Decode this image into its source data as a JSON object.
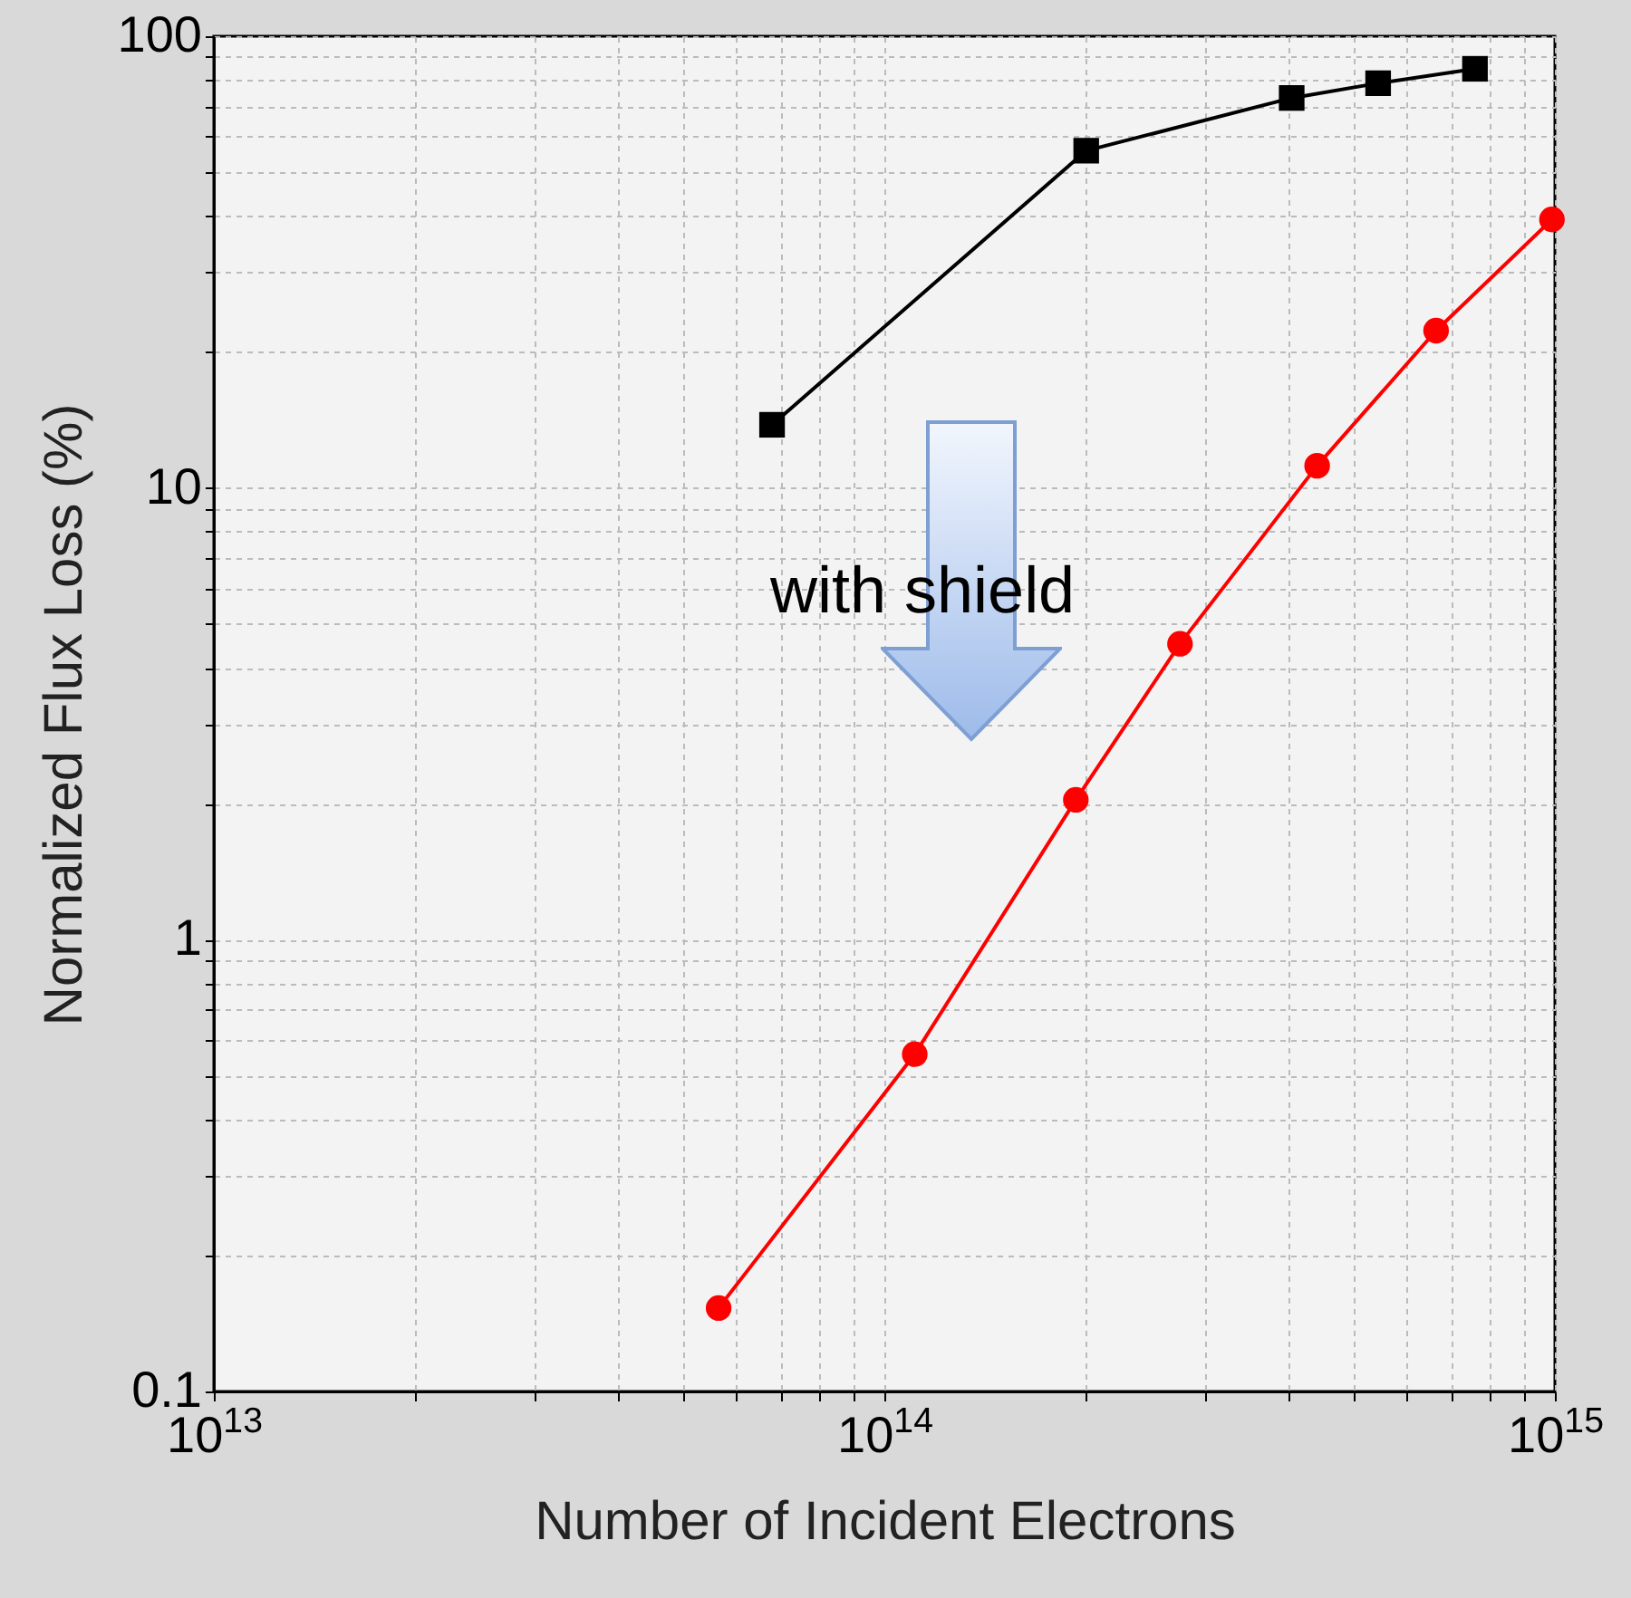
{
  "chart_data": {
    "type": "line",
    "xlabel": "Number of Incident Electrons",
    "ylabel": "Normalized Flux Loss (%)",
    "log": "xy",
    "grid": true,
    "line_style": "solid",
    "xlim": [
      10000000000000.0,
      1000000000000000.0
    ],
    "ylim": [
      0.1,
      100
    ],
    "xticks": [
      {
        "value": 10000000000000.0,
        "label": "10$^{13}$"
      },
      {
        "value": 20000000000000.0,
        "label": null
      },
      {
        "value": 30000000000000.0,
        "label": null
      },
      {
        "value": 40000000000000.0,
        "label": null
      },
      {
        "value": 50000000000000.0,
        "label": null
      },
      {
        "value": 60000000000000.0,
        "label": null
      },
      {
        "value": 70000000000000.0,
        "label": null
      },
      {
        "value": 80000000000000.0,
        "label": null
      },
      {
        "value": 90000000000000.0,
        "label": null
      },
      {
        "value": 100000000000000.0,
        "label": "10$^{14}$"
      },
      {
        "value": 200000000000000.0,
        "label": null
      },
      {
        "value": 300000000000000.0,
        "label": null
      },
      {
        "value": 400000000000000.0,
        "label": null
      },
      {
        "value": 500000000000000.0,
        "label": null
      },
      {
        "value": 600000000000000.0,
        "label": null
      },
      {
        "value": 700000000000000.0,
        "label": null
      },
      {
        "value": 800000000000000.0,
        "label": null
      },
      {
        "value": 900000000000000.0,
        "label": null
      },
      {
        "value": 1000000000000000.0,
        "label": "10$^{15}$"
      }
    ],
    "yticks": [
      {
        "value": 0.1,
        "label": "0.1"
      },
      {
        "value": 0.2,
        "label": null
      },
      {
        "value": 0.3,
        "label": null
      },
      {
        "value": 0.4,
        "label": null
      },
      {
        "value": 0.5,
        "label": null
      },
      {
        "value": 0.6,
        "label": null
      },
      {
        "value": 0.7,
        "label": null
      },
      {
        "value": 0.8,
        "label": null
      },
      {
        "value": 0.9,
        "label": null
      },
      1,
      {
        "value": 2,
        "label": null
      },
      {
        "value": 3,
        "label": null
      },
      {
        "value": 4,
        "label": null
      },
      {
        "value": 5,
        "label": null
      },
      {
        "value": 6,
        "label": null
      },
      {
        "value": 7,
        "label": null
      },
      {
        "value": 8,
        "label": null
      },
      {
        "value": 9,
        "label": null
      },
      10,
      {
        "value": 20,
        "label": null
      },
      {
        "value": 30,
        "label": null
      },
      {
        "value": 40,
        "label": null
      },
      {
        "value": 50,
        "label": null
      },
      {
        "value": 60,
        "label": null
      },
      {
        "value": 70,
        "label": null
      },
      {
        "value": 80,
        "label": null
      },
      {
        "value": 90,
        "label": null
      },
      {
        "value": 100,
        "label": "100"
      }
    ],
    "annotations": [
      "with shield"
    ],
    "series": [
      {
        "color": "#000000",
        "marker": "square",
        "x": [
          68000000000000.0,
          200000000000000.0,
          405000000000000.0,
          545000000000000.0,
          760000000000000.0
        ],
        "values": [
          13.8,
          55.8,
          73,
          78.7,
          84.7
        ]
      },
      {
        "color": "#ff0000",
        "marker": "circle",
        "x": [
          56600000000000.0,
          111000000000000.0,
          193000000000000.0,
          276000000000000.0,
          442000000000000.0,
          665000000000000.0,
          990000000000000.0
        ],
        "values": [
          0.153,
          0.558,
          2.04,
          4.52,
          11.2,
          22.3,
          39.3
        ]
      }
    ]
  }
}
